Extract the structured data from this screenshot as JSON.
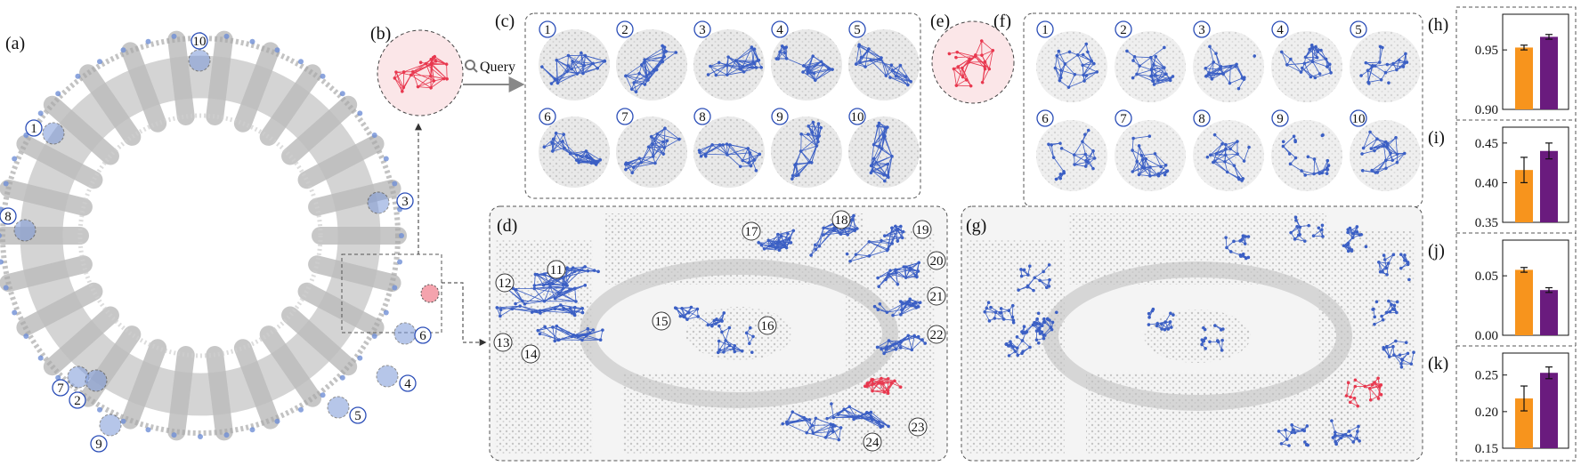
{
  "figure": {
    "panel_labels": {
      "a": "(a)",
      "b": "(b)",
      "c": "(c)",
      "d": "(d)",
      "e": "(e)",
      "f": "(f)",
      "g": "(g)",
      "h": "(h)",
      "i": "(i)",
      "j": "(j)",
      "k": "(k)"
    },
    "query_label": "Query",
    "ring_callouts": [
      "10",
      "1",
      "3",
      "8",
      "6",
      "4",
      "7",
      "2",
      "5",
      "9"
    ],
    "grid_c_numbers": [
      "1",
      "2",
      "3",
      "4",
      "5",
      "6",
      "7",
      "8",
      "9",
      "10"
    ],
    "grid_f_numbers": [
      "1",
      "2",
      "3",
      "4",
      "5",
      "6",
      "7",
      "8",
      "9",
      "10"
    ],
    "d_callouts": [
      "11",
      "12",
      "13",
      "14",
      "15",
      "16",
      "17",
      "18",
      "19",
      "20",
      "21",
      "22",
      "23",
      "24"
    ],
    "colors": {
      "blue": "#3b5fc4",
      "red": "#e8384f",
      "gray": "#b9b9b9",
      "orange": "#f7941d",
      "purple": "#6a1b7e",
      "callout_blue": "#2c4fb8"
    }
  },
  "chart_data": [
    {
      "type": "bar",
      "panel": "(h)",
      "categories": [
        "orange",
        "purple"
      ],
      "values": [
        0.952,
        0.961
      ],
      "errors": [
        0.002,
        0.002
      ],
      "ylim": [
        0.9,
        0.98
      ],
      "yticks": [
        "0.90",
        "0.95"
      ],
      "colors": [
        "#f7941d",
        "#6a1b7e"
      ]
    },
    {
      "type": "bar",
      "panel": "(i)",
      "categories": [
        "orange",
        "purple"
      ],
      "values": [
        0.416,
        0.44
      ],
      "errors": [
        0.016,
        0.01
      ],
      "ylim": [
        0.35,
        0.47
      ],
      "yticks": [
        "0.35",
        "0.40",
        "0.45"
      ],
      "colors": [
        "#f7941d",
        "#6a1b7e"
      ]
    },
    {
      "type": "bar",
      "panel": "(j)",
      "categories": [
        "orange",
        "purple"
      ],
      "values": [
        0.055,
        0.038
      ],
      "errors": [
        0.002,
        0.002
      ],
      "ylim": [
        0.0,
        0.08
      ],
      "yticks": [
        "0.00",
        "0.05"
      ],
      "colors": [
        "#f7941d",
        "#6a1b7e"
      ]
    },
    {
      "type": "bar",
      "panel": "(k)",
      "categories": [
        "orange",
        "purple"
      ],
      "values": [
        0.218,
        0.253
      ],
      "errors": [
        0.017,
        0.008
      ],
      "ylim": [
        0.15,
        0.28
      ],
      "yticks": [
        "0.15",
        "0.20",
        "0.25"
      ],
      "colors": [
        "#f7941d",
        "#6a1b7e"
      ]
    }
  ]
}
